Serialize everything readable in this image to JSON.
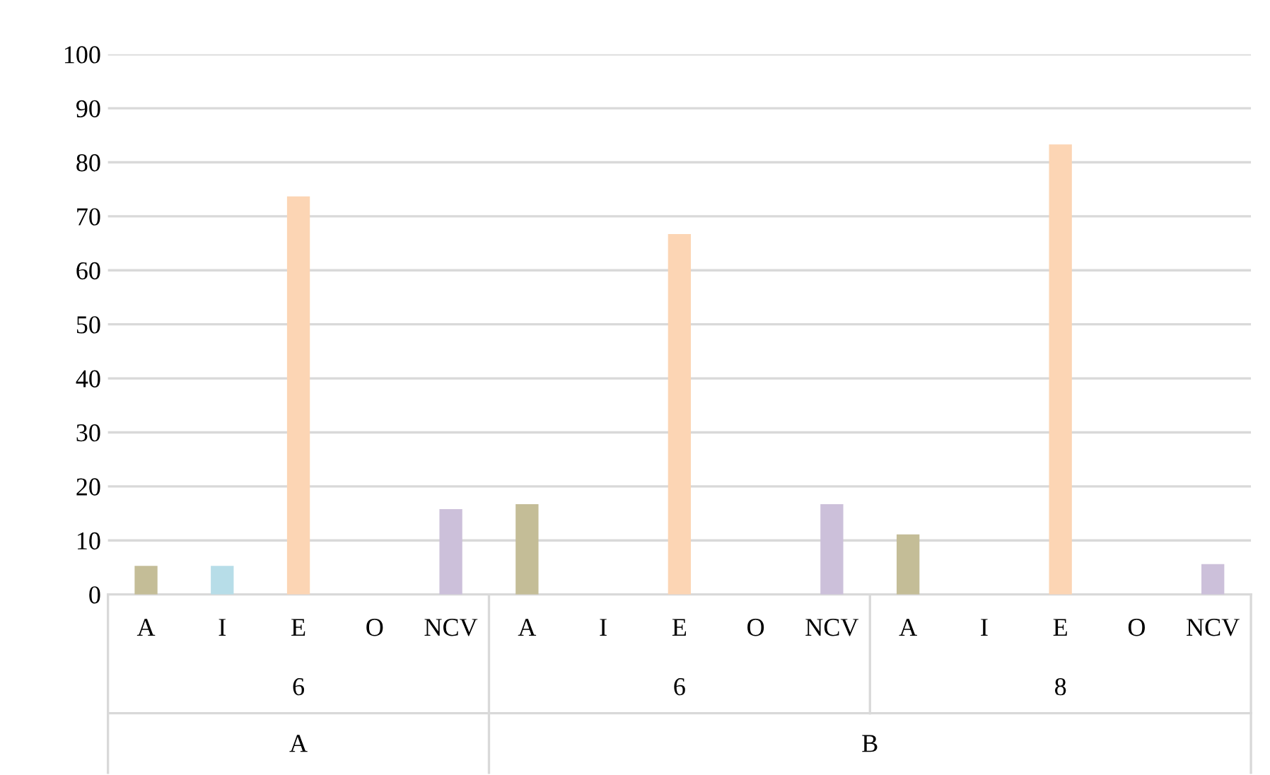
{
  "chart_data": {
    "type": "bar",
    "categories": [
      "A",
      "I",
      "E",
      "O",
      "NCV",
      "A",
      "I",
      "E",
      "O",
      "NCV",
      "A",
      "I",
      "E",
      "O",
      "NCV"
    ],
    "values": [
      5.3,
      5.3,
      73.7,
      0,
      15.8,
      16.7,
      0,
      66.7,
      0,
      16.7,
      11.1,
      0,
      83.3,
      0,
      5.6
    ],
    "colors": [
      "#c4bd97",
      "#b7dde8",
      "#fcd5b4",
      "#e6b9b8",
      "#ccc0da",
      "#c4bd97",
      "#b7dde8",
      "#fcd5b4",
      "#e6b9b8",
      "#ccc0da",
      "#c4bd97",
      "#b7dde8",
      "#fcd5b4",
      "#e6b9b8",
      "#ccc0da"
    ],
    "ylim": [
      0,
      100
    ],
    "yticks": [
      0,
      10,
      20,
      30,
      40,
      50,
      60,
      70,
      80,
      90,
      100
    ],
    "grid": "y",
    "legend": false,
    "annotations": [
      "6",
      "6",
      "8",
      "A",
      "B"
    ]
  }
}
